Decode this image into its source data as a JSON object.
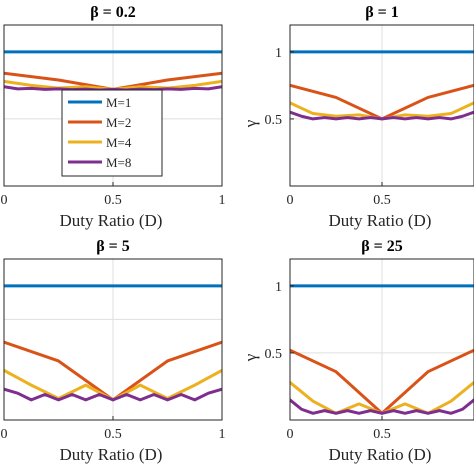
{
  "chart_data": [
    {
      "type": "line",
      "title": "β = 0.2",
      "xlabel": "Duty Ratio (D)",
      "ylabel": "",
      "xlim": [
        0,
        1
      ],
      "ylim": [
        0.5,
        1.1
      ],
      "xticks": [
        "0",
        "0.5",
        "1"
      ],
      "yticks": [],
      "grid": true,
      "legend": "center-left",
      "series": [
        {
          "name": "M=1",
          "color": "#0072BD",
          "x": [
            0,
            0.5,
            1
          ],
          "y": [
            1.0,
            1.0,
            1.0
          ]
        },
        {
          "name": "M=2",
          "color": "#D95319",
          "x": [
            0,
            0.25,
            0.5,
            0.75,
            1
          ],
          "y": [
            0.92,
            0.895,
            0.86,
            0.895,
            0.92
          ]
        },
        {
          "name": "M=4",
          "color": "#EDB120",
          "x": [
            0,
            0.125,
            0.25,
            0.375,
            0.5,
            0.625,
            0.75,
            0.875,
            1
          ],
          "y": [
            0.89,
            0.875,
            0.865,
            0.87,
            0.86,
            0.87,
            0.865,
            0.875,
            0.89
          ]
        },
        {
          "name": "M=8",
          "color": "#7E2F8E",
          "x": [
            0,
            0.0625,
            0.125,
            0.1875,
            0.25,
            0.3125,
            0.375,
            0.4375,
            0.5,
            0.5625,
            0.625,
            0.6875,
            0.75,
            0.8125,
            0.875,
            0.9375,
            1
          ],
          "y": [
            0.87,
            0.862,
            0.864,
            0.86,
            0.862,
            0.859,
            0.861,
            0.858,
            0.86,
            0.858,
            0.861,
            0.859,
            0.862,
            0.86,
            0.864,
            0.862,
            0.87
          ]
        }
      ]
    },
    {
      "type": "line",
      "title": "β = 1",
      "xlabel": "Duty Ratio (D)",
      "ylabel": "γ",
      "xlim": [
        0,
        1
      ],
      "ylim": [
        0.0,
        1.2
      ],
      "xticks": [
        "0",
        "0.5"
      ],
      "yticks": [
        "0.5",
        "1"
      ],
      "grid": true,
      "series": [
        {
          "name": "M=1",
          "color": "#0072BD",
          "x": [
            0,
            0.5,
            1
          ],
          "y": [
            1.0,
            1.0,
            1.0
          ]
        },
        {
          "name": "M=2",
          "color": "#D95319",
          "x": [
            0,
            0.25,
            0.5,
            0.75,
            1
          ],
          "y": [
            0.75,
            0.66,
            0.5,
            0.66,
            0.75
          ]
        },
        {
          "name": "M=4",
          "color": "#EDB120",
          "x": [
            0,
            0.125,
            0.25,
            0.375,
            0.5,
            0.625,
            0.75,
            0.875,
            1
          ],
          "y": [
            0.62,
            0.54,
            0.52,
            0.53,
            0.5,
            0.53,
            0.52,
            0.54,
            0.62
          ]
        },
        {
          "name": "M=8",
          "color": "#7E2F8E",
          "x": [
            0,
            0.0625,
            0.125,
            0.1875,
            0.25,
            0.3125,
            0.375,
            0.4375,
            0.5,
            0.5625,
            0.625,
            0.6875,
            0.75,
            0.8125,
            0.875,
            0.9375,
            1
          ],
          "y": [
            0.55,
            0.52,
            0.5,
            0.51,
            0.5,
            0.51,
            0.5,
            0.51,
            0.5,
            0.51,
            0.5,
            0.51,
            0.5,
            0.51,
            0.5,
            0.52,
            0.55
          ]
        }
      ]
    },
    {
      "type": "line",
      "title": "β = 5",
      "xlabel": "Duty Ratio (D)",
      "ylabel": "",
      "xlim": [
        0,
        1
      ],
      "ylim": [
        0.0,
        1.2
      ],
      "xticks": [
        "0",
        "0.5",
        "1"
      ],
      "yticks": [],
      "grid": true,
      "series": [
        {
          "name": "M=1",
          "color": "#0072BD",
          "x": [
            0,
            0.5,
            1
          ],
          "y": [
            1.0,
            1.0,
            1.0
          ]
        },
        {
          "name": "M=2",
          "color": "#D95319",
          "x": [
            0,
            0.25,
            0.5,
            0.75,
            1
          ],
          "y": [
            0.58,
            0.44,
            0.15,
            0.44,
            0.58
          ]
        },
        {
          "name": "M=4",
          "color": "#EDB120",
          "x": [
            0,
            0.125,
            0.25,
            0.375,
            0.5,
            0.625,
            0.75,
            0.875,
            1
          ],
          "y": [
            0.37,
            0.26,
            0.16,
            0.26,
            0.15,
            0.26,
            0.16,
            0.26,
            0.37
          ]
        },
        {
          "name": "M=8",
          "color": "#7E2F8E",
          "x": [
            0,
            0.0625,
            0.125,
            0.1875,
            0.25,
            0.3125,
            0.375,
            0.4375,
            0.5,
            0.5625,
            0.625,
            0.6875,
            0.75,
            0.8125,
            0.875,
            0.9375,
            1
          ],
          "y": [
            0.23,
            0.2,
            0.15,
            0.19,
            0.15,
            0.19,
            0.15,
            0.19,
            0.15,
            0.19,
            0.15,
            0.19,
            0.15,
            0.19,
            0.15,
            0.2,
            0.23
          ]
        }
      ]
    },
    {
      "type": "line",
      "title": "β = 25",
      "xlabel": "Duty Ratio (D)",
      "ylabel": "γ",
      "xlim": [
        0,
        1
      ],
      "ylim": [
        0.0,
        1.2
      ],
      "xticks": [
        "0",
        "0.5"
      ],
      "yticks": [
        "0.5",
        "1"
      ],
      "grid": true,
      "series": [
        {
          "name": "M=1",
          "color": "#0072BD",
          "x": [
            0,
            0.5,
            1
          ],
          "y": [
            1.0,
            1.0,
            1.0
          ]
        },
        {
          "name": "M=2",
          "color": "#D95319",
          "x": [
            0,
            0.25,
            0.5,
            0.75,
            1
          ],
          "y": [
            0.52,
            0.36,
            0.05,
            0.36,
            0.52
          ]
        },
        {
          "name": "M=4",
          "color": "#EDB120",
          "x": [
            0,
            0.125,
            0.25,
            0.375,
            0.5,
            0.625,
            0.75,
            0.875,
            1
          ],
          "y": [
            0.28,
            0.14,
            0.05,
            0.12,
            0.05,
            0.12,
            0.05,
            0.14,
            0.28
          ]
        },
        {
          "name": "M=8",
          "color": "#7E2F8E",
          "x": [
            0,
            0.0625,
            0.125,
            0.1875,
            0.25,
            0.3125,
            0.375,
            0.4375,
            0.5,
            0.5625,
            0.625,
            0.6875,
            0.75,
            0.8125,
            0.875,
            0.9375,
            1
          ],
          "y": [
            0.15,
            0.08,
            0.05,
            0.07,
            0.05,
            0.07,
            0.05,
            0.07,
            0.05,
            0.07,
            0.05,
            0.07,
            0.05,
            0.07,
            0.05,
            0.08,
            0.15
          ]
        }
      ]
    }
  ]
}
